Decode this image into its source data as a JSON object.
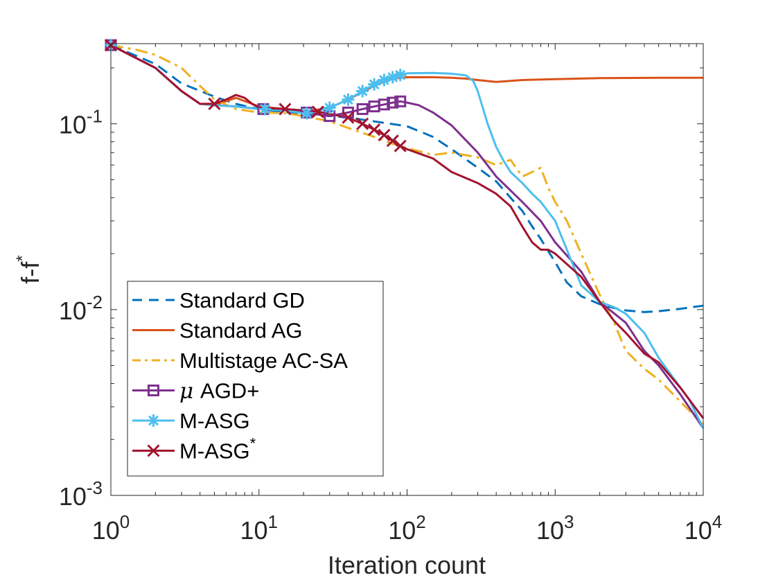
{
  "chart_data": {
    "type": "line",
    "title": "",
    "xlabel": "Iteration count",
    "ylabel": "f-f",
    "ylabel_sup": "*",
    "xscale": "log",
    "yscale": "log",
    "xlim": [
      1,
      10000
    ],
    "ylim": [
      0.001,
      0.27
    ],
    "x_ticks": [
      {
        "value": 1,
        "base": "10",
        "exp": "0"
      },
      {
        "value": 10,
        "base": "10",
        "exp": "1"
      },
      {
        "value": 100,
        "base": "10",
        "exp": "2"
      },
      {
        "value": 1000,
        "base": "10",
        "exp": "3"
      },
      {
        "value": 10000,
        "base": "10",
        "exp": "4"
      }
    ],
    "y_ticks": [
      {
        "value": 0.1,
        "base": "10",
        "exp": "-1"
      },
      {
        "value": 0.01,
        "base": "10",
        "exp": "-2"
      },
      {
        "value": 0.001,
        "base": "10",
        "exp": "-3"
      }
    ],
    "grid": false,
    "legend_position": "bottom-left",
    "series": [
      {
        "name": "Standard GD",
        "name_sup": "",
        "color": "#0072BD",
        "style": "dashed",
        "marker": "none",
        "x": [
          1,
          2,
          3,
          5,
          7,
          9,
          12,
          18,
          25,
          40,
          60,
          100,
          150,
          200,
          300,
          400,
          500,
          600,
          700,
          800,
          1000,
          1200,
          1500,
          2000,
          2500,
          3000,
          4000,
          5000,
          7000,
          10000
        ],
        "y": [
          0.265,
          0.21,
          0.165,
          0.14,
          0.128,
          0.122,
          0.118,
          0.114,
          0.112,
          0.108,
          0.103,
          0.097,
          0.085,
          0.073,
          0.058,
          0.049,
          0.04,
          0.034,
          0.028,
          0.024,
          0.018,
          0.014,
          0.0118,
          0.0107,
          0.0102,
          0.0099,
          0.0097,
          0.0098,
          0.0101,
          0.0105
        ]
      },
      {
        "name": "Standard AG",
        "name_sup": "",
        "color": "#D95319",
        "style": "solid",
        "marker": "none",
        "x": [
          1,
          2,
          3,
          4,
          5,
          7,
          10,
          15,
          20,
          30,
          40,
          60,
          80,
          100,
          150,
          200,
          250,
          300,
          400,
          600,
          1000,
          2000,
          5000,
          10000
        ],
        "y": [
          0.265,
          0.2,
          0.15,
          0.128,
          0.126,
          0.138,
          0.124,
          0.12,
          0.116,
          0.122,
          0.135,
          0.16,
          0.175,
          0.178,
          0.178,
          0.177,
          0.175,
          0.172,
          0.168,
          0.172,
          0.174,
          0.176,
          0.177,
          0.177
        ]
      },
      {
        "name": "Multistage AC-SA",
        "name_sup": "",
        "color": "#EDB120",
        "style": "dashdot",
        "marker": "none",
        "x": [
          1,
          1.5,
          2,
          3,
          4,
          5,
          7,
          10,
          15,
          20,
          30,
          40,
          60,
          80,
          100,
          150,
          200,
          300,
          400,
          500,
          600,
          700,
          800,
          900,
          1000,
          1200,
          1500,
          2000,
          2500,
          3000,
          4000,
          5000,
          7000,
          10000
        ],
        "y": [
          0.265,
          0.25,
          0.235,
          0.2,
          0.16,
          0.135,
          0.12,
          0.115,
          0.114,
          0.11,
          0.103,
          0.095,
          0.085,
          0.078,
          0.074,
          0.068,
          0.07,
          0.066,
          0.06,
          0.064,
          0.052,
          0.055,
          0.058,
          0.045,
          0.038,
          0.03,
          0.02,
          0.012,
          0.0085,
          0.006,
          0.0048,
          0.0042,
          0.0032,
          0.0024
        ]
      },
      {
        "name": "AGD+",
        "name_sup": "",
        "prefix": "μ",
        "color": "#7E2F8E",
        "style": "solid",
        "marker": "square",
        "x": [
          1,
          2,
          3,
          4,
          5,
          7,
          10,
          15,
          20,
          30,
          40,
          50,
          60,
          70,
          80,
          90,
          100,
          120,
          150,
          200,
          300,
          400,
          600,
          800,
          1000,
          1500,
          2000,
          3000,
          4000,
          5000,
          7000,
          10000
        ],
        "y": [
          0.265,
          0.2,
          0.15,
          0.128,
          0.126,
          0.124,
          0.12,
          0.118,
          0.115,
          0.11,
          0.115,
          0.12,
          0.124,
          0.127,
          0.13,
          0.132,
          0.13,
          0.126,
          0.115,
          0.098,
          0.07,
          0.052,
          0.038,
          0.03,
          0.023,
          0.016,
          0.011,
          0.0085,
          0.006,
          0.005,
          0.0035,
          0.0023
        ],
        "marker_x": [
          1,
          10.7,
          21,
          30,
          40,
          50,
          60,
          70,
          80,
          90
        ],
        "marker_y": [
          0.265,
          0.12,
          0.115,
          0.11,
          0.115,
          0.12,
          0.124,
          0.127,
          0.13,
          0.132
        ]
      },
      {
        "name": "M-ASG",
        "name_sup": "",
        "color": "#4DBEEE",
        "style": "solid",
        "marker": "asterisk",
        "x": [
          1,
          2,
          3,
          4,
          5,
          7,
          10,
          15,
          20,
          25,
          30,
          40,
          50,
          60,
          70,
          80,
          90,
          100,
          150,
          200,
          250,
          280,
          300,
          350,
          400,
          450,
          500,
          600,
          700,
          800,
          1000,
          1200,
          1500,
          2000,
          2500,
          3000,
          4000,
          5000,
          6000,
          8000,
          10000
        ],
        "y": [
          0.265,
          0.2,
          0.15,
          0.128,
          0.126,
          0.124,
          0.12,
          0.118,
          0.114,
          0.117,
          0.122,
          0.135,
          0.15,
          0.163,
          0.172,
          0.178,
          0.183,
          0.187,
          0.188,
          0.186,
          0.182,
          0.17,
          0.15,
          0.1,
          0.075,
          0.063,
          0.055,
          0.048,
          0.042,
          0.038,
          0.03,
          0.021,
          0.0135,
          0.011,
          0.0103,
          0.0095,
          0.0075,
          0.0055,
          0.0045,
          0.0033,
          0.0023
        ],
        "marker_x": [
          1,
          11,
          21,
          30,
          40,
          50,
          60,
          70,
          80,
          90
        ],
        "marker_y": [
          0.265,
          0.12,
          0.114,
          0.122,
          0.135,
          0.15,
          0.163,
          0.172,
          0.178,
          0.183
        ]
      },
      {
        "name": "M-ASG",
        "name_sup": "*",
        "color": "#A2142F",
        "style": "solid",
        "marker": "x",
        "x": [
          1,
          2,
          3,
          4,
          5,
          6,
          7,
          8,
          9,
          10,
          15,
          20,
          25,
          30,
          40,
          50,
          60,
          70,
          80,
          90,
          100,
          150,
          200,
          300,
          400,
          500,
          600,
          700,
          800,
          900,
          1000,
          1500,
          2000,
          2500,
          3000,
          4000,
          5000,
          7000,
          10000
        ],
        "y": [
          0.265,
          0.2,
          0.15,
          0.128,
          0.128,
          0.135,
          0.143,
          0.138,
          0.128,
          0.122,
          0.12,
          0.118,
          0.116,
          0.113,
          0.108,
          0.1,
          0.093,
          0.087,
          0.081,
          0.076,
          0.073,
          0.065,
          0.055,
          0.048,
          0.042,
          0.036,
          0.028,
          0.023,
          0.021,
          0.021,
          0.02,
          0.015,
          0.011,
          0.0087,
          0.0075,
          0.0058,
          0.0052,
          0.0038,
          0.0026
        ],
        "marker_x": [
          1,
          5,
          15,
          25,
          40,
          50,
          60,
          70,
          80,
          90
        ],
        "marker_y": [
          0.265,
          0.128,
          0.12,
          0.116,
          0.108,
          0.1,
          0.093,
          0.087,
          0.081,
          0.076
        ]
      }
    ]
  }
}
